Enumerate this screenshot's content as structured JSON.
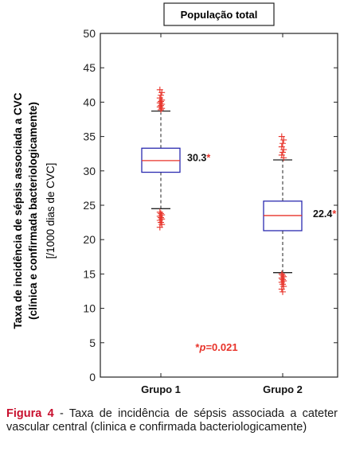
{
  "chart_data": {
    "type": "box",
    "title": "População total",
    "ylabel_line1": "Taxa de incidência de sépsis associada a CVC",
    "ylabel_line2": "(clínica e confirmada bacteriologicamente)",
    "ylabel_line3": "[/1000 dias de CVC]",
    "ylim": [
      0,
      50
    ],
    "yticks": [
      0,
      5,
      10,
      15,
      20,
      25,
      30,
      35,
      40,
      45,
      50
    ],
    "categories": [
      "Grupo 1",
      "Grupo 2"
    ],
    "boxes": [
      {
        "category": "Grupo 1",
        "whisker_low": 24.5,
        "q1": 29.8,
        "median": 31.5,
        "q3": 33.3,
        "whisker_high": 38.7,
        "outliers_low": [
          24.0,
          23.8,
          23.6,
          23.4,
          23.2,
          23.0,
          22.8,
          22.5,
          22.2,
          21.8
        ],
        "outliers_high": [
          38.9,
          39.1,
          39.3,
          39.5,
          39.7,
          39.9,
          40.1,
          40.3,
          40.6,
          41.0,
          41.4,
          41.8
        ],
        "label": "30.3",
        "label_mark": "*"
      },
      {
        "category": "Grupo 2",
        "whisker_low": 15.2,
        "q1": 21.3,
        "median": 23.5,
        "q3": 25.6,
        "whisker_high": 31.6,
        "outliers_low": [
          15.0,
          14.8,
          14.6,
          14.4,
          14.2,
          14.0,
          13.8,
          13.5,
          13.2,
          12.8,
          12.4
        ],
        "outliers_high": [
          31.9,
          32.3,
          32.7,
          33.1,
          33.5,
          34.0,
          34.5,
          35.0
        ],
        "label": "22.4",
        "label_mark": "*"
      }
    ],
    "annotation_mark": "*",
    "annotation_p": "p",
    "annotation_rest": "=0.021",
    "colors": {
      "box": "#2b2bb0",
      "median": "#e8332a",
      "outlier": "#e8332a",
      "annotation": "#e8332a",
      "axis": "#222222"
    }
  },
  "caption": {
    "label": "Figura 4",
    "text": " - Taxa de incidência de sépsis associada a cateter vascular central (clinica e confirmada bacteriologicamente)"
  }
}
